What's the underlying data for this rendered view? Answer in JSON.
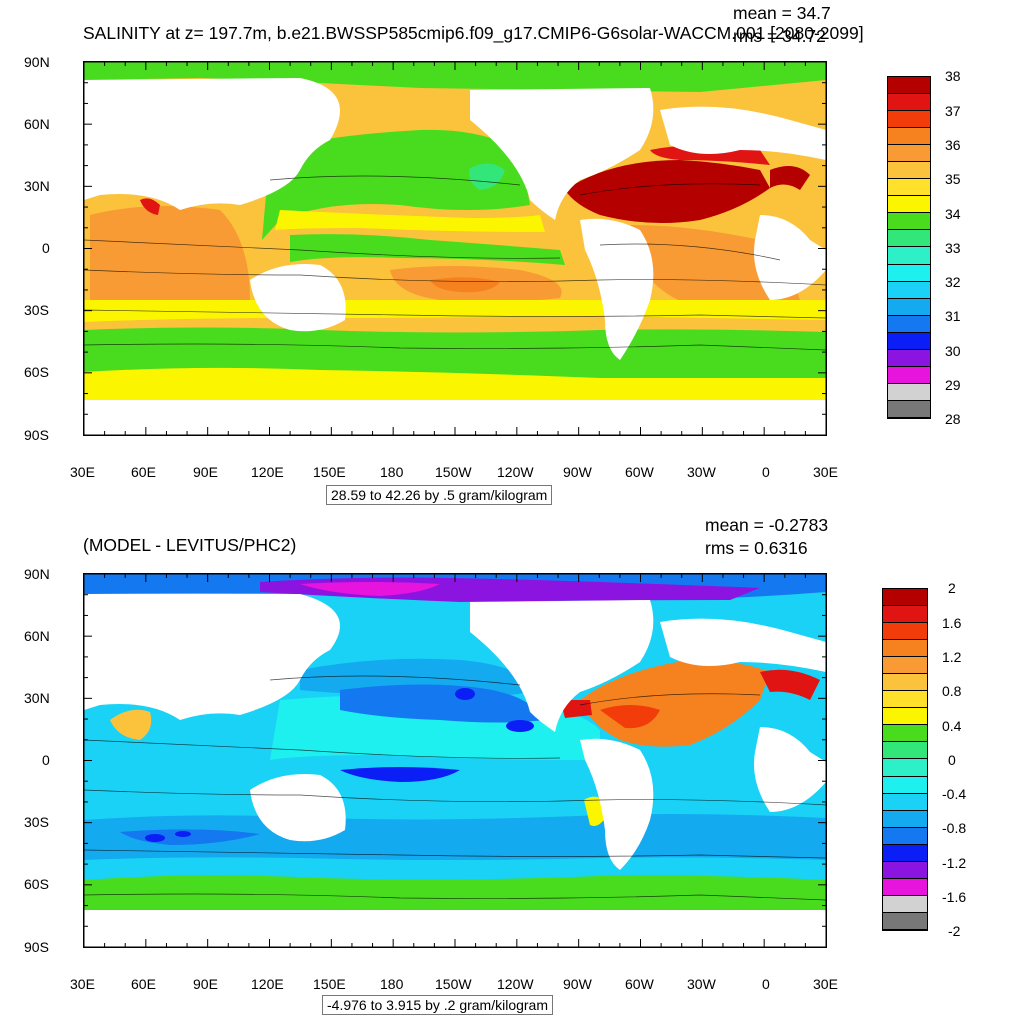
{
  "panels": [
    {
      "title": "SALINITY at z= 197.7m, b.e21.BWSSP585cmip6.f09_g17.CMIP6-G6solar-WACCM.001 [2080-2099]",
      "mean_text": "mean = 34.7",
      "rms_text": "rms = 34.72",
      "info_text": "28.59 to 42.26 by .5 gram/kilogram",
      "colorbar": {
        "labels": [
          "38",
          "37",
          "36",
          "35",
          "34",
          "33",
          "32",
          "31",
          "30",
          "29",
          "28"
        ],
        "colors": [
          "#b50000",
          "#e11414",
          "#f23c0a",
          "#f5821e",
          "#f89b34",
          "#fbc23c",
          "#ffe02a",
          "#fbf600",
          "#49dc1e",
          "#33e67a",
          "#2ef0c8",
          "#1ef0f0",
          "#1ad2f5",
          "#14aaf0",
          "#1478f0",
          "#0a1ef5",
          "#8c14e1",
          "#e614dc",
          "#d2d2d2",
          "#787878"
        ]
      }
    },
    {
      "title": "(MODEL - LEVITUS/PHC2)",
      "mean_text": "mean = -0.2783",
      "rms_text": "rms = 0.6316",
      "info_text": "-4.976 to 3.915 by .2 gram/kilogram",
      "colorbar": {
        "labels": [
          "2",
          "1.6",
          "1.2",
          "0.8",
          "0.4",
          "0",
          "-0.4",
          "-0.8",
          "-1.2",
          "-1.6",
          "-2"
        ],
        "colors": [
          "#b50000",
          "#e11414",
          "#f23c0a",
          "#f5821e",
          "#f89b34",
          "#fbc23c",
          "#ffe02a",
          "#fbf600",
          "#49dc1e",
          "#33e67a",
          "#2ef0c8",
          "#1ef0f0",
          "#1ad2f5",
          "#14aaf0",
          "#1478f0",
          "#0a1ef5",
          "#8c14e1",
          "#e614dc",
          "#d2d2d2",
          "#787878"
        ]
      }
    }
  ],
  "axes": {
    "lat_labels": [
      "90N",
      "60N",
      "30N",
      "0",
      "30S",
      "60S",
      "90S"
    ],
    "lon_labels": [
      "30E",
      "60E",
      "90E",
      "120E",
      "150E",
      "180",
      "150W",
      "120W",
      "90W",
      "60W",
      "30W",
      "0",
      "30E"
    ]
  }
}
